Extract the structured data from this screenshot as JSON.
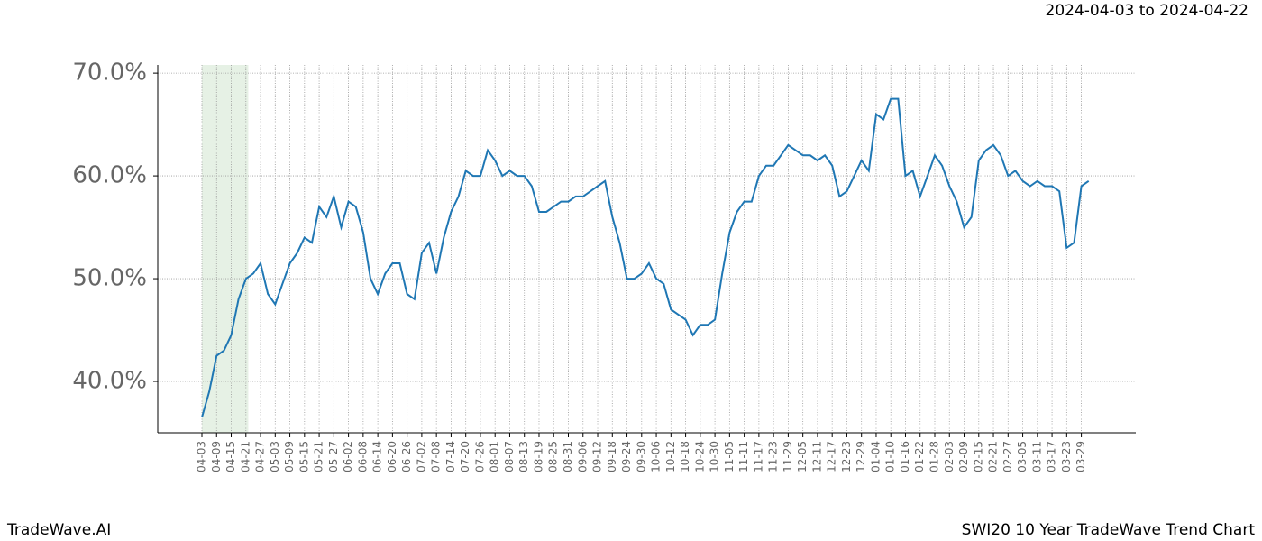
{
  "chart_data": {
    "type": "line",
    "date_range": "2024-04-03 to 2024-04-22",
    "brand": "TradeWave.AI",
    "title": "SWI20 10 Year TradeWave Trend Chart",
    "color": "#1f77b4",
    "highlight_color": "#d5e8d4",
    "highlight_span": [
      0,
      6.33
    ],
    "categories": [
      "04-03",
      null,
      "04-09",
      null,
      "04-15",
      null,
      "04-21",
      null,
      "04-27",
      null,
      "05-03",
      null,
      "05-09",
      null,
      "05-15",
      null,
      "05-21",
      null,
      "05-27",
      null,
      "06-02",
      null,
      "06-08",
      null,
      "06-14",
      null,
      "06-20",
      null,
      "06-26",
      null,
      "07-02",
      null,
      "07-08",
      null,
      "07-14",
      null,
      "07-20",
      null,
      "07-26",
      null,
      "08-01",
      null,
      "08-07",
      null,
      "08-13",
      null,
      "08-19",
      null,
      "08-25",
      null,
      "08-31",
      null,
      "09-06",
      null,
      "09-12",
      null,
      "09-18",
      null,
      "09-24",
      null,
      "09-30",
      null,
      "10-06",
      null,
      "10-12",
      null,
      "10-18",
      null,
      "10-24",
      null,
      "10-30",
      null,
      "11-05",
      null,
      "11-11",
      null,
      "11-17",
      null,
      "11-23",
      null,
      "11-29",
      null,
      "12-05",
      null,
      "12-11",
      null,
      "12-17",
      null,
      "12-23",
      null,
      "12-29",
      null,
      "01-04",
      null,
      "01-10",
      null,
      "01-16",
      null,
      "01-22",
      null,
      "01-28",
      null,
      "02-03",
      null,
      "02-09",
      null,
      "02-15",
      null,
      "02-21",
      null,
      "02-27",
      null,
      "03-05",
      null,
      "03-11",
      null,
      "03-17",
      null,
      "03-23",
      null,
      "03-29",
      null
    ],
    "values": [
      36.5,
      39,
      42.5,
      43,
      44.5,
      48,
      50,
      50.5,
      51.5,
      48.5,
      47.5,
      49.5,
      51.5,
      52.5,
      54,
      53.5,
      57,
      56,
      58,
      55,
      57.5,
      57,
      54.5,
      50,
      48.5,
      50.5,
      51.5,
      51.5,
      48.5,
      48,
      52.5,
      53.5,
      50.5,
      54,
      56.5,
      58,
      60.5,
      60,
      60,
      62.5,
      61.5,
      60,
      60.5,
      60,
      60,
      59,
      56.5,
      56.5,
      57,
      57.5,
      57.5,
      58,
      58,
      58.5,
      59,
      59.5,
      56,
      53.5,
      50,
      50,
      50.5,
      51.5,
      50,
      49.5,
      47,
      46.5,
      46,
      44.5,
      45.5,
      45.5,
      46,
      50.5,
      54.5,
      56.5,
      57.5,
      57.5,
      60,
      61,
      61,
      62,
      63,
      62.5,
      62,
      62,
      61.5,
      62,
      61,
      58,
      58.5,
      60,
      61.5,
      60.5,
      66,
      65.5,
      67.5,
      67.5,
      60,
      60.5,
      58,
      60,
      62,
      61,
      59,
      57.5,
      55,
      56,
      61.5,
      62.5,
      63,
      62,
      60,
      60.5,
      59.5,
      59,
      59.5,
      59,
      59,
      58.5,
      53,
      53.5,
      59,
      59.5
    ],
    "ylim": [
      35,
      70.8
    ],
    "yticks": [
      {
        "value": 40,
        "label": "40.0%"
      },
      {
        "value": 50,
        "label": "50.0%"
      },
      {
        "value": 60,
        "label": "60.0%"
      },
      {
        "value": 70,
        "label": "70.0%"
      }
    ],
    "grid": true
  }
}
